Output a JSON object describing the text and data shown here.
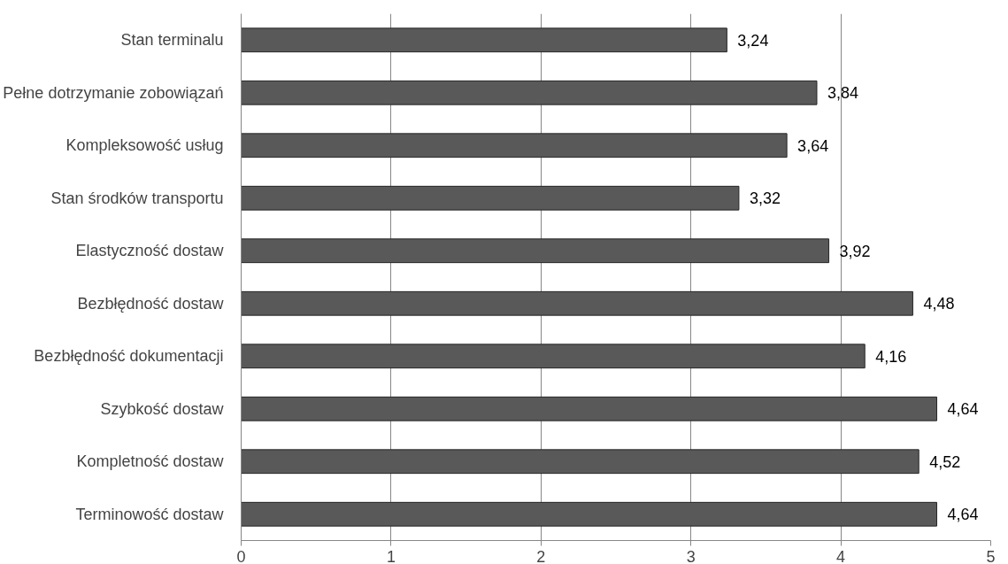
{
  "chart_data": {
    "type": "bar",
    "orientation": "horizontal",
    "categories": [
      "Stan terminalu",
      "Pełne dotrzymanie zobowiązań",
      "Kompleksowość usług",
      "Stan środków transportu",
      "Elastyczność dostaw",
      "Bezbłędność dostaw",
      "Bezbłędność dokumentacji",
      "Szybkość dostaw",
      "Kompletność dostaw",
      "Terminowość dostaw"
    ],
    "values": [
      3.24,
      3.84,
      3.64,
      3.32,
      3.92,
      4.48,
      4.16,
      4.64,
      4.52,
      4.64
    ],
    "value_labels": [
      "3,24",
      "3,84",
      "3,64",
      "3,32",
      "3,92",
      "4,48",
      "4,16",
      "4,64",
      "4,52",
      "4,64"
    ],
    "color": "#595959",
    "xlim": [
      0,
      5
    ],
    "xticks": [
      0,
      1,
      2,
      3,
      4,
      5
    ],
    "grid": "x"
  }
}
